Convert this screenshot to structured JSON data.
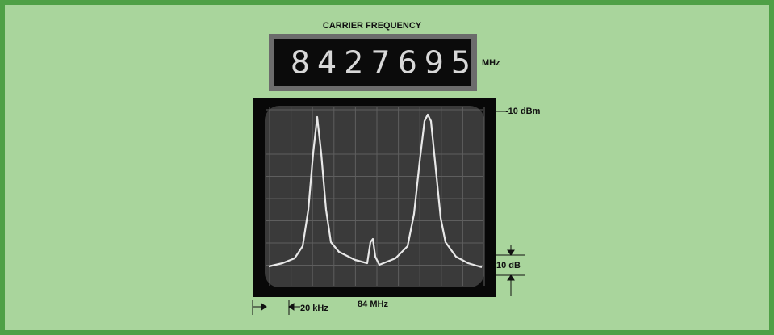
{
  "display": {
    "title": "CARRIER FREQUENCY",
    "reading": "8427695",
    "unit": "MHz"
  },
  "screen": {
    "reference_level": "-10 dBm",
    "vertical_scale": "10 dB",
    "horizontal_scale": "20 kHz",
    "center_frequency": "84 MHz"
  }
}
